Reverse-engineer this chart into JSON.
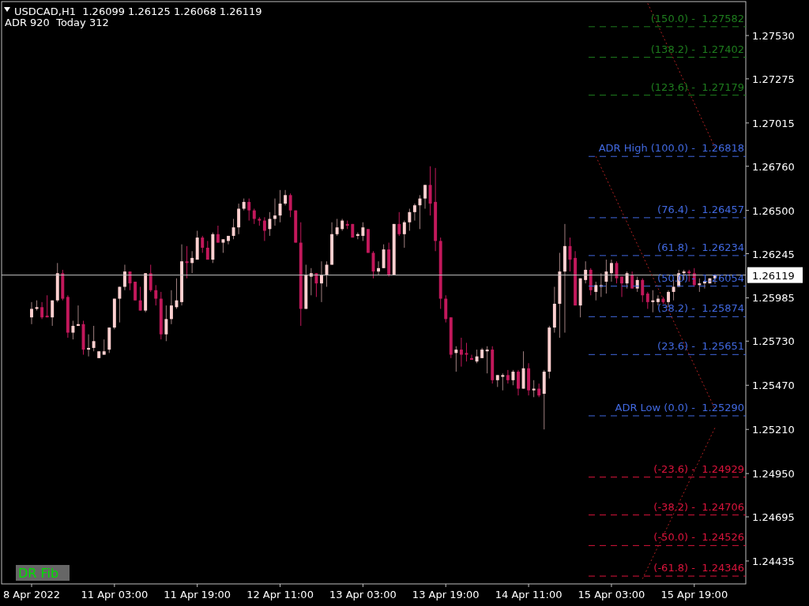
{
  "chart_data": {
    "type": "candlestick",
    "title": "USDCAD,H1  1.26099 1.26125 1.26068 1.26119",
    "subtitle": "ADR 920  Today 312",
    "annotations": [
      "DR Fib",
      {
        "text": "(150.0) -  1.27582",
        "y": 1.27582
      },
      {
        "text": "(138.2) -  1.27402",
        "y": 1.27402
      },
      {
        "text": "(123.6) -  1.27179",
        "y": 1.27179
      },
      {
        "text": "ADR High (100.0) -  1.26818",
        "y": 1.26818
      },
      {
        "text": "(76.4) -  1.26457",
        "y": 1.26457
      },
      {
        "text": "(61.8) -  1.26234",
        "y": 1.26234
      },
      {
        "text": "(50.0) -  1.26054",
        "y": 1.26054
      },
      {
        "text": "(38.2) -  1.25874",
        "y": 1.25874
      },
      {
        "text": "(23.6) -  1.25651",
        "y": 1.25651
      },
      {
        "text": "ADR Low (0.0) -  1.25290",
        "y": 1.2529
      },
      {
        "text": "(-23.6) -  1.24929",
        "y": 1.24929
      },
      {
        "text": "(-38.2) -  1.24706",
        "y": 1.24706
      },
      {
        "text": "(-50.0) -  1.24526",
        "y": 1.24526
      },
      {
        "text": "(-61.8) -  1.24346",
        "y": 1.24346
      }
    ],
    "categories": [
      "8 Apr 2022",
      null,
      null,
      null,
      null,
      null,
      null,
      null,
      null,
      null,
      null,
      null,
      null,
      null,
      null,
      null,
      "11 Apr 03:00",
      null,
      null,
      null,
      null,
      null,
      null,
      null,
      null,
      null,
      null,
      null,
      null,
      null,
      null,
      null,
      "11 Apr 19:00",
      null,
      null,
      null,
      null,
      null,
      null,
      null,
      null,
      null,
      null,
      null,
      null,
      null,
      null,
      null,
      "12 Apr 11:00",
      null,
      null,
      null,
      null,
      null,
      null,
      null,
      null,
      null,
      null,
      null,
      null,
      null,
      null,
      null,
      "13 Apr 03:00",
      null,
      null,
      null,
      null,
      null,
      null,
      null,
      null,
      null,
      null,
      null,
      null,
      null,
      null,
      null,
      "13 Apr 19:00",
      null,
      null,
      null,
      null,
      null,
      null,
      null,
      null,
      null,
      null,
      null,
      null,
      null,
      null,
      null,
      "14 Apr 11:00",
      null,
      null,
      null,
      null,
      null,
      null,
      null,
      null,
      null,
      null,
      null,
      null,
      null,
      null,
      null,
      "15 Apr 03:00",
      null,
      null,
      null,
      null,
      null,
      null,
      null,
      null,
      null,
      null,
      null,
      null,
      null,
      null,
      null,
      "15 Apr 19:00",
      null,
      null,
      null,
      null
    ],
    "ohlc": [
      [
        1.2587,
        1.2596,
        1.2583,
        1.2592
      ],
      [
        1.2592,
        1.2597,
        1.2591,
        1.2593
      ],
      [
        1.2593,
        1.2596,
        1.2586,
        1.2587
      ],
      [
        1.2588,
        1.26,
        1.2587,
        1.2587
      ],
      [
        1.2587,
        1.2597,
        1.2582,
        1.2597
      ],
      [
        1.2597,
        1.2619,
        1.2596,
        1.2613
      ],
      [
        1.2613,
        1.2615,
        1.2597,
        1.2598
      ],
      [
        1.2599,
        1.26,
        1.2575,
        1.2578
      ],
      [
        1.2578,
        1.2585,
        1.2574,
        1.2582
      ],
      [
        1.2582,
        1.2594,
        1.2582,
        1.2583
      ],
      [
        1.2583,
        1.2585,
        1.2565,
        1.2568
      ],
      [
        1.2568,
        1.2577,
        1.2564,
        1.2569
      ],
      [
        1.2569,
        1.2582,
        1.2567,
        1.2573
      ],
      [
        1.2563,
        1.2567,
        1.2563,
        1.2567
      ],
      [
        1.2565,
        1.2574,
        1.2565,
        1.2567
      ],
      [
        1.2568,
        1.2581,
        1.2566,
        1.2581
      ],
      [
        1.2581,
        1.2598,
        1.258,
        1.2598
      ],
      [
        1.2598,
        1.2605,
        1.2584,
        1.2605
      ],
      [
        1.2605,
        1.2618,
        1.2603,
        1.2614
      ],
      [
        1.2614,
        1.2614,
        1.2603,
        1.2607
      ],
      [
        1.2608,
        1.2608,
        1.2597,
        1.2597
      ],
      [
        1.2597,
        1.2605,
        1.2591,
        1.2591
      ],
      [
        1.2591,
        1.2613,
        1.259,
        1.2613
      ],
      [
        1.2613,
        1.2618,
        1.2602,
        1.2603
      ],
      [
        1.2603,
        1.2606,
        1.2594,
        1.2598
      ],
      [
        1.2598,
        1.2602,
        1.2574,
        1.2577
      ],
      [
        1.2577,
        1.2594,
        1.2573,
        1.2586
      ],
      [
        1.2586,
        1.2603,
        1.2583,
        1.2594
      ],
      [
        1.2593,
        1.261,
        1.2592,
        1.2597
      ],
      [
        1.2596,
        1.263,
        1.2594,
        1.262
      ],
      [
        1.262,
        1.2629,
        1.261,
        1.2619
      ],
      [
        1.2619,
        1.2626,
        1.2613,
        1.2622
      ],
      [
        1.2621,
        1.2638,
        1.2621,
        1.2634
      ],
      [
        1.2634,
        1.2635,
        1.2625,
        1.2628
      ],
      [
        1.2628,
        1.2632,
        1.2621,
        1.2621
      ],
      [
        1.2621,
        1.2637,
        1.2619,
        1.2636
      ],
      [
        1.2636,
        1.2641,
        1.2631,
        1.2631
      ],
      [
        1.2631,
        1.2633,
        1.2625,
        1.2633
      ],
      [
        1.2632,
        1.2635,
        1.263,
        1.2635
      ],
      [
        1.2635,
        1.2645,
        1.2633,
        1.264
      ],
      [
        1.264,
        1.2654,
        1.2636,
        1.2651
      ],
      [
        1.2651,
        1.2657,
        1.265,
        1.2655
      ],
      [
        1.2655,
        1.2657,
        1.2644,
        1.265
      ],
      [
        1.265,
        1.2651,
        1.2642,
        1.2645
      ],
      [
        1.2645,
        1.2646,
        1.2641,
        1.2644
      ],
      [
        1.2644,
        1.2646,
        1.2632,
        1.2638
      ],
      [
        1.2639,
        1.2649,
        1.2635,
        1.2645
      ],
      [
        1.2645,
        1.2657,
        1.2641,
        1.2647
      ],
      [
        1.2647,
        1.2662,
        1.2643,
        1.2654
      ],
      [
        1.2654,
        1.2662,
        1.2653,
        1.2659
      ],
      [
        1.2659,
        1.266,
        1.2646,
        1.265
      ],
      [
        1.265,
        1.265,
        1.2631,
        1.2631
      ],
      [
        1.2631,
        1.2643,
        1.2582,
        1.2592
      ],
      [
        1.2592,
        1.2618,
        1.2592,
        1.2612
      ],
      [
        1.2611,
        1.2616,
        1.26,
        1.2613
      ],
      [
        1.2613,
        1.2613,
        1.2599,
        1.2607
      ],
      [
        1.2607,
        1.262,
        1.2596,
        1.2612
      ],
      [
        1.2612,
        1.262,
        1.2605,
        1.2618
      ],
      [
        1.2618,
        1.2643,
        1.2618,
        1.2636
      ],
      [
        1.2636,
        1.2645,
        1.2635,
        1.264
      ],
      [
        1.2639,
        1.2645,
        1.2638,
        1.2644
      ],
      [
        1.2642,
        1.2644,
        1.2639,
        1.2641
      ],
      [
        1.2642,
        1.2642,
        1.2634,
        1.2634
      ],
      [
        1.2635,
        1.2637,
        1.2633,
        1.2636
      ],
      [
        1.2635,
        1.2643,
        1.2632,
        1.264
      ],
      [
        1.2639,
        1.2639,
        1.2625,
        1.2625
      ],
      [
        1.2625,
        1.2626,
        1.261,
        1.2614
      ],
      [
        1.2614,
        1.262,
        1.2612,
        1.2616
      ],
      [
        1.2616,
        1.263,
        1.2616,
        1.2627
      ],
      [
        1.2627,
        1.2631,
        1.2611,
        1.2612
      ],
      [
        1.2612,
        1.2642,
        1.2612,
        1.2642
      ],
      [
        1.2642,
        1.2649,
        1.2635,
        1.2636
      ],
      [
        1.2636,
        1.2644,
        1.2628,
        1.2643
      ],
      [
        1.2643,
        1.2651,
        1.2638,
        1.2649
      ],
      [
        1.2649,
        1.2654,
        1.2644,
        1.2653
      ],
      [
        1.2653,
        1.2659,
        1.2639,
        1.2657
      ],
      [
        1.2657,
        1.2665,
        1.2651,
        1.2665
      ],
      [
        1.2665,
        1.2676,
        1.2647,
        1.2654
      ],
      [
        1.2655,
        1.2675,
        1.2626,
        1.2632
      ],
      [
        1.2632,
        1.2634,
        1.2592,
        1.2598
      ],
      [
        1.2598,
        1.26,
        1.2584,
        1.2586
      ],
      [
        1.2587,
        1.2587,
        1.2563,
        1.2565
      ],
      [
        1.2566,
        1.257,
        1.2555,
        1.2568
      ],
      [
        1.2568,
        1.2575,
        1.2558,
        1.2565
      ],
      [
        1.2566,
        1.2572,
        1.2561,
        1.2565
      ],
      [
        1.2563,
        1.2565,
        1.2562,
        1.2562
      ],
      [
        1.2561,
        1.2568,
        1.256,
        1.2564
      ],
      [
        1.2563,
        1.2569,
        1.2563,
        1.2568
      ],
      [
        1.2567,
        1.257,
        1.2554,
        1.2568
      ],
      [
        1.2568,
        1.257,
        1.2548,
        1.255
      ],
      [
        1.255,
        1.2553,
        1.2546,
        1.2553
      ],
      [
        1.2552,
        1.2554,
        1.2544,
        1.2553
      ],
      [
        1.2553,
        1.2556,
        1.2548,
        1.255
      ],
      [
        1.255,
        1.2556,
        1.2547,
        1.2555
      ],
      [
        1.2555,
        1.2556,
        1.2541,
        1.2545
      ],
      [
        1.2545,
        1.2567,
        1.2545,
        1.2557
      ],
      [
        1.2557,
        1.256,
        1.2541,
        1.2544
      ],
      [
        1.2544,
        1.255,
        1.254,
        1.2545
      ],
      [
        1.2545,
        1.2548,
        1.254,
        1.2541
      ],
      [
        1.2542,
        1.2556,
        1.2521,
        1.2555
      ],
      [
        1.2555,
        1.2582,
        1.2551,
        1.2581
      ],
      [
        1.2581,
        1.2605,
        1.2578,
        1.2595
      ],
      [
        1.2595,
        1.2625,
        1.2575,
        1.2614
      ],
      [
        1.2614,
        1.2642,
        1.2578,
        1.2629
      ],
      [
        1.2629,
        1.2634,
        1.2614,
        1.2621
      ],
      [
        1.2622,
        1.2626,
        1.2594,
        1.2594
      ],
      [
        1.2594,
        1.261,
        1.2587,
        1.261
      ],
      [
        1.2609,
        1.262,
        1.2607,
        1.2615
      ],
      [
        1.2615,
        1.2616,
        1.26,
        1.2603
      ],
      [
        1.2602,
        1.2608,
        1.2597,
        1.2606
      ],
      [
        1.2605,
        1.2613,
        1.2599,
        1.2606
      ],
      [
        1.2608,
        1.2621,
        1.2601,
        1.2614
      ],
      [
        1.2613,
        1.2621,
        1.2608,
        1.2619
      ],
      [
        1.2619,
        1.262,
        1.2607,
        1.261
      ],
      [
        1.2611,
        1.2611,
        1.2599,
        1.2607
      ],
      [
        1.2607,
        1.2614,
        1.2604,
        1.2613
      ],
      [
        1.2612,
        1.2614,
        1.2604,
        1.2604
      ],
      [
        1.2604,
        1.2611,
        1.2602,
        1.2609
      ],
      [
        1.2609,
        1.261,
        1.2596,
        1.26
      ],
      [
        1.2601,
        1.2602,
        1.2592,
        1.2596
      ],
      [
        1.2596,
        1.2603,
        1.259,
        1.2597
      ],
      [
        1.2596,
        1.26,
        1.2594,
        1.2598
      ],
      [
        1.2598,
        1.2599,
        1.2595,
        1.2596
      ],
      [
        1.2596,
        1.2603,
        1.2593,
        1.2602
      ],
      [
        1.2602,
        1.2609,
        1.2597,
        1.2605
      ],
      [
        1.2605,
        1.2615,
        1.2605,
        1.2613
      ],
      [
        1.2613,
        1.2615,
        1.2609,
        1.2614
      ],
      [
        1.2614,
        1.2615,
        1.2608,
        1.2613
      ],
      [
        1.2613,
        1.2616,
        1.2605,
        1.2606
      ],
      [
        1.2606,
        1.261,
        1.2602,
        1.2607
      ],
      [
        1.2607,
        1.2609,
        1.2604,
        1.2608
      ],
      [
        1.2607,
        1.261,
        1.2607,
        1.261
      ],
      [
        1.26099,
        1.26125,
        1.26068,
        1.26119
      ]
    ],
    "series": [
      {
        "type": "line",
        "color": "#b22222",
        "line_style": "dotted",
        "values": [
          null,
          null,
          null,
          null,
          null,
          null,
          null,
          null,
          null,
          null,
          null,
          null,
          null,
          null,
          null,
          null,
          null,
          null,
          null,
          null,
          null,
          null,
          null,
          null,
          null,
          null,
          null,
          null,
          null,
          null,
          null,
          null,
          null,
          null,
          null,
          null,
          null,
          null,
          null,
          null,
          null,
          null,
          null,
          null,
          null,
          null,
          null,
          null,
          null,
          null,
          null,
          null,
          null,
          null,
          null,
          null,
          null,
          null,
          null,
          null,
          null,
          null,
          null,
          null,
          null,
          null,
          null,
          null,
          null,
          null,
          null,
          null,
          null,
          null,
          null,
          null,
          null,
          null,
          null,
          null,
          null,
          null,
          null,
          null,
          null,
          null,
          null,
          null,
          null,
          null,
          null,
          null,
          null,
          null,
          null,
          null,
          null,
          null,
          null,
          null,
          null,
          null,
          null,
          null,
          null,
          null,
          null,
          null,
          null,
          null,
          null,
          null,
          null,
          null,
          null,
          null,
          null,
          null,
          null,
          1.2772,
          null,
          null,
          null,
          null,
          null,
          null,
          null,
          null,
          null,
          null,
          null,
          null,
          1.2687
        ]
      },
      {
        "type": "line",
        "color": "#b22222",
        "line_style": "dotted",
        "values": [
          null,
          null,
          null,
          null,
          null,
          null,
          null,
          null,
          null,
          null,
          null,
          null,
          null,
          null,
          null,
          null,
          null,
          null,
          null,
          null,
          null,
          null,
          null,
          null,
          null,
          null,
          null,
          null,
          null,
          null,
          null,
          null,
          null,
          null,
          null,
          null,
          null,
          null,
          null,
          null,
          null,
          null,
          null,
          null,
          null,
          null,
          null,
          null,
          null,
          null,
          null,
          null,
          null,
          null,
          null,
          null,
          null,
          null,
          null,
          null,
          null,
          null,
          null,
          null,
          null,
          null,
          null,
          null,
          null,
          null,
          null,
          null,
          null,
          null,
          null,
          null,
          null,
          null,
          null,
          null,
          null,
          null,
          null,
          null,
          null,
          null,
          null,
          null,
          null,
          null,
          null,
          null,
          null,
          null,
          null,
          null,
          null,
          null,
          null,
          null,
          null,
          null,
          null,
          null,
          null,
          null,
          null,
          null,
          null,
          1.26818,
          null,
          null,
          null,
          null,
          null,
          null,
          null,
          null,
          null,
          null,
          null,
          null,
          null,
          null,
          null,
          null,
          null,
          null,
          null,
          null,
          null,
          null,
          1.2533
        ]
      },
      {
        "type": "line",
        "color": "#b22222",
        "line_style": "dotted",
        "values": [
          null,
          null,
          null,
          null,
          null,
          null,
          null,
          null,
          null,
          null,
          null,
          null,
          null,
          null,
          null,
          null,
          null,
          null,
          null,
          null,
          null,
          null,
          null,
          null,
          null,
          null,
          null,
          null,
          null,
          null,
          null,
          null,
          null,
          null,
          null,
          null,
          null,
          null,
          null,
          null,
          null,
          null,
          null,
          null,
          null,
          null,
          null,
          null,
          null,
          null,
          null,
          null,
          null,
          null,
          null,
          null,
          null,
          null,
          null,
          null,
          null,
          null,
          null,
          null,
          null,
          null,
          null,
          null,
          null,
          null,
          null,
          null,
          null,
          null,
          null,
          null,
          null,
          null,
          null,
          null,
          null,
          null,
          null,
          null,
          null,
          null,
          null,
          null,
          null,
          null,
          null,
          null,
          null,
          null,
          null,
          null,
          null,
          null,
          null,
          null,
          null,
          null,
          null,
          null,
          null,
          null,
          null,
          null,
          null,
          null,
          null,
          null,
          null,
          null,
          null,
          null,
          null,
          null,
          1.2433,
          null,
          null,
          null,
          null,
          null,
          null,
          null,
          null,
          null,
          null,
          null,
          null,
          null,
          1.2522
        ]
      }
    ],
    "ylim": [
      1.243,
      1.2773
    ],
    "yticks": [
      {
        "value": 1.2753,
        "label": "1.27530"
      },
      1.27275,
      1.27015,
      {
        "value": 1.2676,
        "label": "1.26760"
      },
      {
        "value": 1.265,
        "label": "1.26500"
      },
      1.26245,
      1.25985,
      {
        "value": 1.2573,
        "label": "1.25730"
      },
      {
        "value": 1.2547,
        "label": "1.25470"
      },
      {
        "value": 1.2521,
        "label": "1.25210"
      },
      {
        "value": 1.2495,
        "label": "1.24950"
      },
      1.24695,
      1.24435
    ],
    "ref_lines": [
      {
        "axis": "y",
        "value": 1.27582,
        "color": "#1e7d1e",
        "line_style": "dashed"
      },
      {
        "axis": "y",
        "value": 1.27402,
        "color": "#1e7d1e",
        "line_style": "dashed"
      },
      {
        "axis": "y",
        "value": 1.27179,
        "color": "#1e7d1e",
        "line_style": "dashed"
      },
      {
        "axis": "y",
        "value": 1.26818,
        "color": "#4169e1",
        "line_style": "dashed"
      },
      {
        "axis": "y",
        "value": 1.26457,
        "color": "#4169e1",
        "line_style": "dashed"
      },
      {
        "axis": "y",
        "value": 1.26234,
        "color": "#4169e1",
        "line_style": "dashed"
      },
      {
        "axis": "y",
        "value": 1.26054,
        "color": "#4169e1",
        "line_style": "dashed"
      },
      {
        "axis": "y",
        "value": 1.25874,
        "color": "#4169e1",
        "line_style": "dashed"
      },
      {
        "axis": "y",
        "value": 1.25651,
        "color": "#4169e1",
        "line_style": "dashed"
      },
      {
        "axis": "y",
        "value": 1.2529,
        "color": "#4169e1",
        "line_style": "dashed"
      },
      {
        "axis": "y",
        "value": 1.24929,
        "color": "#dc143c",
        "line_style": "dashed"
      },
      {
        "axis": "y",
        "value": 1.24706,
        "color": "#dc143c",
        "line_style": "dashed"
      },
      {
        "axis": "y",
        "value": 1.24526,
        "color": "#dc143c",
        "line_style": "dashed"
      },
      {
        "axis": "y",
        "value": 1.24346,
        "color": "#dc143c",
        "line_style": "dashed"
      },
      {
        "axis": "y",
        "value": 1.26119,
        "label": "1.26119",
        "color": "#c0c0c0",
        "line_style": "solid"
      }
    ],
    "grid": false
  }
}
